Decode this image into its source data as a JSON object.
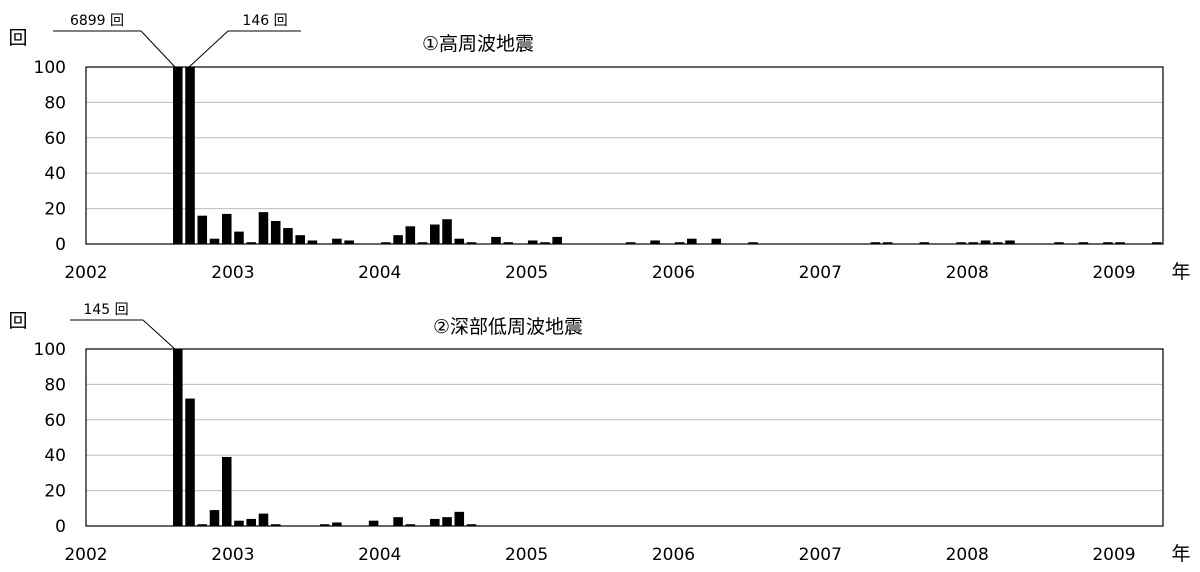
{
  "chart_data": [
    {
      "type": "bar",
      "title": "①高周波地震",
      "ylabel": "回",
      "xunit": "年",
      "ylim": [
        0,
        100
      ],
      "yticks": [
        "0",
        "20",
        "40",
        "60",
        "80",
        "100"
      ],
      "xticks": [
        "2002",
        "2003",
        "2004",
        "2005",
        "2006",
        "2007",
        "2008",
        "2009"
      ],
      "grid": true,
      "period_start": "2002-01",
      "bin": "month",
      "values": [
        0,
        0,
        0,
        0,
        0,
        0,
        0,
        6899,
        146,
        16,
        3,
        17,
        7,
        1,
        18,
        13,
        9,
        5,
        2,
        0,
        3,
        2,
        0,
        0,
        1,
        5,
        10,
        1,
        11,
        14,
        3,
        1,
        0,
        4,
        1,
        0,
        2,
        1,
        4,
        0,
        0,
        0,
        0,
        0,
        1,
        0,
        2,
        0,
        1,
        3,
        0,
        3,
        0,
        0,
        1,
        0,
        0,
        0,
        0,
        0,
        0,
        0,
        0,
        0,
        1,
        1,
        0,
        0,
        1,
        0,
        0,
        1,
        1,
        2,
        1,
        2,
        0,
        0,
        0,
        1,
        0,
        1,
        0,
        1,
        1,
        0,
        0,
        1,
        0,
        0,
        0,
        2
      ],
      "callouts": [
        "6899 回",
        "146 回"
      ]
    },
    {
      "type": "bar",
      "title": "②深部低周波地震",
      "ylabel": "回",
      "xunit": "年",
      "ylim": [
        0,
        100
      ],
      "yticks": [
        "0",
        "20",
        "40",
        "60",
        "80",
        "100"
      ],
      "xticks": [
        "2002",
        "2003",
        "2004",
        "2005",
        "2006",
        "2007",
        "2008",
        "2009"
      ],
      "grid": true,
      "period_start": "2002-01",
      "bin": "month",
      "values": [
        0,
        0,
        0,
        0,
        0,
        0,
        0,
        145,
        72,
        1,
        9,
        39,
        3,
        4,
        7,
        1,
        0,
        0,
        0,
        1,
        2,
        0,
        0,
        3,
        0,
        5,
        1,
        0,
        4,
        5,
        8,
        1,
        0,
        0,
        0,
        0,
        0,
        0,
        0,
        0,
        0,
        0,
        0,
        0,
        0,
        0,
        0,
        0,
        0,
        0,
        0,
        0,
        0,
        0,
        0,
        0,
        0,
        0,
        0,
        0,
        0,
        0,
        0,
        0,
        0,
        0,
        0,
        0,
        0,
        0,
        0,
        0,
        0,
        0,
        0,
        0,
        0,
        0,
        0,
        0,
        0,
        0,
        0,
        0,
        0,
        0,
        0,
        0,
        0,
        0,
        0,
        0
      ],
      "callouts": [
        "145 回"
      ]
    }
  ]
}
